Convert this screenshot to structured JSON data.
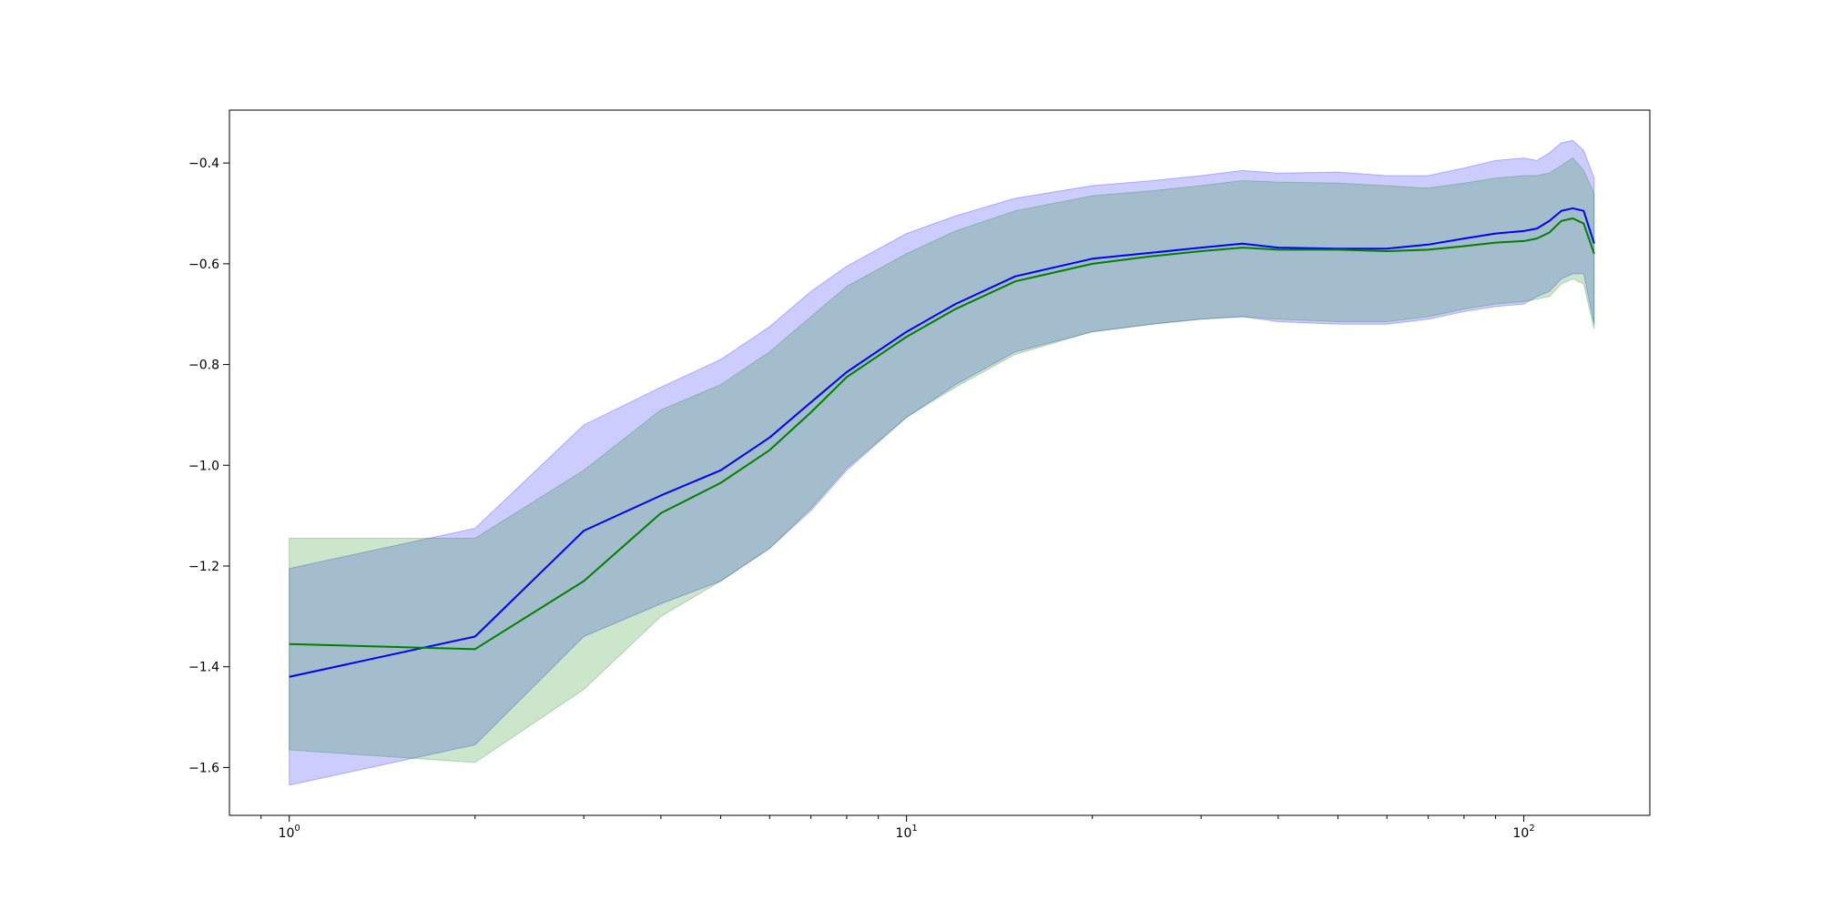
{
  "chart_data": {
    "type": "line",
    "title": "",
    "xlabel": "",
    "ylabel": "",
    "xscale": "log",
    "xlim": [
      0.8,
      160
    ],
    "ylim": [
      -1.695,
      -0.295
    ],
    "grid": false,
    "legend": "none",
    "x_ticks": [
      {
        "value": 1,
        "base": "10",
        "exp": "0"
      },
      {
        "value": 10,
        "base": "10",
        "exp": "1"
      },
      {
        "value": 100,
        "base": "10",
        "exp": "2"
      }
    ],
    "y_ticks": [
      {
        "value": -0.4,
        "label": "−0.4"
      },
      {
        "value": -0.6,
        "label": "−0.6"
      },
      {
        "value": -0.8,
        "label": "−0.8"
      },
      {
        "value": -1.0,
        "label": "−1.0"
      },
      {
        "value": -1.2,
        "label": "−1.2"
      },
      {
        "value": -1.4,
        "label": "−1.4"
      },
      {
        "value": -1.6,
        "label": "−1.6"
      }
    ],
    "series": [
      {
        "color": "#0000ff",
        "band_color": "#0000ff",
        "band_opacity": 0.2,
        "x": [
          1,
          2,
          3,
          4,
          5,
          6,
          7,
          8,
          10,
          12,
          15,
          20,
          25,
          30,
          35,
          40,
          50,
          60,
          70,
          80,
          90,
          100,
          105,
          110,
          115,
          120,
          125,
          130
        ],
        "mean": [
          -1.42,
          -1.34,
          -1.13,
          -1.06,
          -1.01,
          -0.945,
          -0.875,
          -0.815,
          -0.735,
          -0.68,
          -0.625,
          -0.59,
          -0.578,
          -0.568,
          -0.56,
          -0.568,
          -0.57,
          -0.57,
          -0.562,
          -0.55,
          -0.54,
          -0.535,
          -0.53,
          -0.515,
          -0.495,
          -0.49,
          -0.495,
          -0.56
        ],
        "upper": [
          -1.205,
          -1.125,
          -0.92,
          -0.845,
          -0.79,
          -0.725,
          -0.655,
          -0.605,
          -0.54,
          -0.505,
          -0.47,
          -0.445,
          -0.435,
          -0.425,
          -0.415,
          -0.42,
          -0.418,
          -0.425,
          -0.425,
          -0.41,
          -0.395,
          -0.39,
          -0.395,
          -0.38,
          -0.36,
          -0.355,
          -0.375,
          -0.43
        ],
        "lower": [
          -1.635,
          -1.555,
          -1.34,
          -1.275,
          -1.23,
          -1.165,
          -1.09,
          -1.01,
          -0.905,
          -0.84,
          -0.775,
          -0.735,
          -0.72,
          -0.71,
          -0.705,
          -0.715,
          -0.72,
          -0.72,
          -0.71,
          -0.695,
          -0.685,
          -0.68,
          -0.665,
          -0.655,
          -0.63,
          -0.62,
          -0.62,
          -0.72
        ]
      },
      {
        "color": "#007f00",
        "band_color": "#008000",
        "band_opacity": 0.2,
        "x": [
          1,
          2,
          3,
          4,
          5,
          6,
          7,
          8,
          10,
          12,
          15,
          20,
          25,
          30,
          35,
          40,
          50,
          60,
          70,
          80,
          90,
          100,
          105,
          110,
          115,
          120,
          125,
          130
        ],
        "mean": [
          -1.355,
          -1.365,
          -1.23,
          -1.095,
          -1.035,
          -0.97,
          -0.895,
          -0.825,
          -0.745,
          -0.69,
          -0.635,
          -0.6,
          -0.585,
          -0.575,
          -0.568,
          -0.572,
          -0.572,
          -0.575,
          -0.572,
          -0.565,
          -0.558,
          -0.555,
          -0.55,
          -0.538,
          -0.515,
          -0.51,
          -0.52,
          -0.58
        ],
        "upper": [
          -1.145,
          -1.145,
          -1.01,
          -0.89,
          -0.84,
          -0.775,
          -0.705,
          -0.645,
          -0.58,
          -0.535,
          -0.495,
          -0.465,
          -0.455,
          -0.445,
          -0.435,
          -0.438,
          -0.44,
          -0.445,
          -0.45,
          -0.44,
          -0.43,
          -0.425,
          -0.425,
          -0.42,
          -0.405,
          -0.39,
          -0.415,
          -0.46
        ],
        "lower": [
          -1.565,
          -1.59,
          -1.445,
          -1.3,
          -1.23,
          -1.165,
          -1.085,
          -1.005,
          -0.905,
          -0.845,
          -0.78,
          -0.735,
          -0.72,
          -0.71,
          -0.705,
          -0.71,
          -0.715,
          -0.715,
          -0.705,
          -0.69,
          -0.68,
          -0.675,
          -0.67,
          -0.665,
          -0.64,
          -0.63,
          -0.64,
          -0.73
        ]
      }
    ]
  }
}
